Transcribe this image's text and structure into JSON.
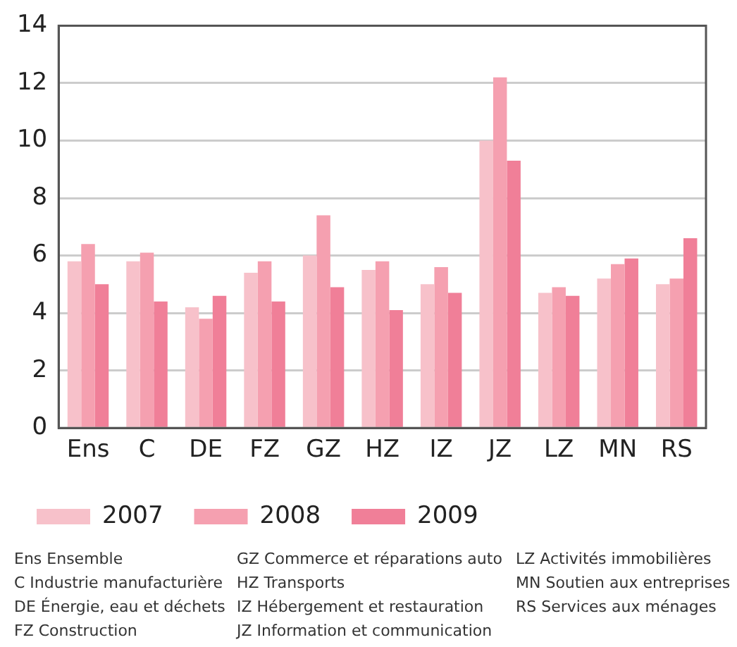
{
  "chart_data": {
    "type": "bar",
    "categories": [
      "Ens",
      "C",
      "DE",
      "FZ",
      "GZ",
      "HZ",
      "IZ",
      "JZ",
      "LZ",
      "MN",
      "RS"
    ],
    "series": [
      {
        "name": "2007",
        "color": "#f7c1ca",
        "values": [
          5.8,
          5.8,
          4.2,
          5.4,
          6.0,
          5.5,
          5.0,
          10.0,
          4.7,
          5.2,
          5.0
        ]
      },
      {
        "name": "2008",
        "color": "#f5a0b0",
        "values": [
          6.4,
          6.1,
          3.8,
          5.8,
          7.4,
          5.8,
          5.6,
          12.2,
          4.9,
          5.7,
          5.2
        ]
      },
      {
        "name": "2009",
        "color": "#f07f98",
        "values": [
          5.0,
          4.4,
          4.6,
          4.4,
          4.9,
          4.1,
          4.7,
          9.3,
          4.6,
          5.9,
          6.6
        ]
      }
    ],
    "ylim": [
      0,
      14
    ],
    "yticks": [
      0,
      2,
      4,
      6,
      8,
      10,
      12,
      14
    ],
    "grid": "y",
    "legend": "bottom",
    "annotations": [
      "Ens Ensemble",
      "C Industrie manufacturière",
      "DE Énergie, eau et déchets",
      "FZ Construction",
      "GZ Commerce et réparations auto",
      "HZ Transports",
      "IZ Hébergement et restauration",
      "JZ Information et communication",
      "LZ Activités immobilières",
      "MN Soutien aux entreprises",
      "RS Services aux ménages"
    ]
  }
}
